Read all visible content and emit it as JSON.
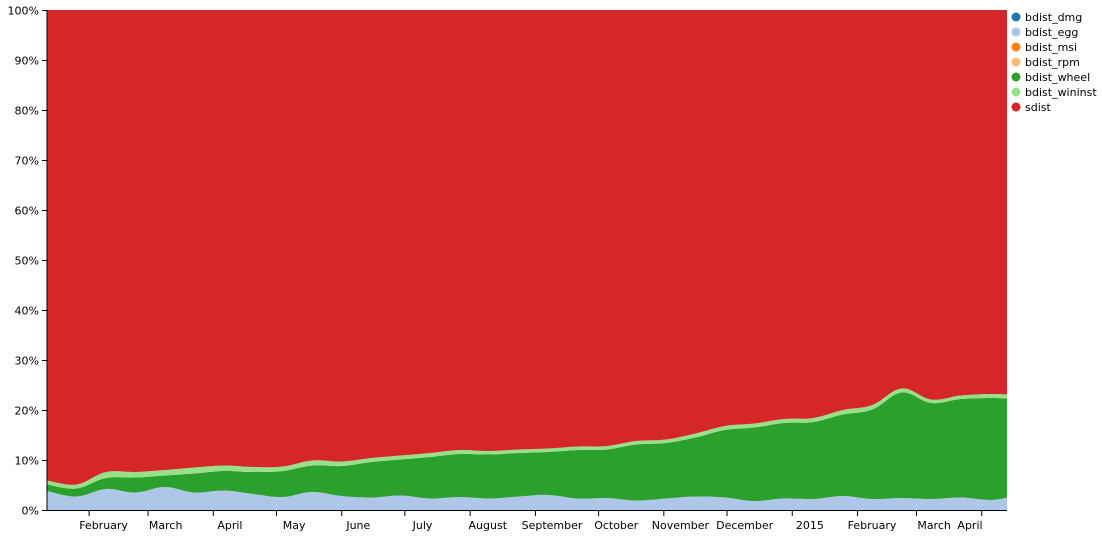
{
  "chart_data": {
    "type": "area",
    "stacked": true,
    "normalized": true,
    "y_axis": {
      "ylim": [
        0,
        100
      ],
      "tick_labels": [
        "0%",
        "10%",
        "20%",
        "30%",
        "40%",
        "50%",
        "60%",
        "70%",
        "80%",
        "90%",
        "100%"
      ]
    },
    "x_axis": {
      "tick_labels": [
        "February",
        "March",
        "April",
        "May",
        "June",
        "July",
        "August",
        "September",
        "October",
        "November",
        "December",
        "2015",
        "February",
        "March",
        "April"
      ],
      "range": [
        "2014-01-12",
        "2015-04-13"
      ]
    },
    "legend": {
      "placement": "right"
    },
    "x": [
      "2014-01-12",
      "2014-01-26",
      "2014-02-09",
      "2014-02-23",
      "2014-03-09",
      "2014-03-23",
      "2014-04-06",
      "2014-04-20",
      "2014-05-04",
      "2014-05-18",
      "2014-06-01",
      "2014-06-15",
      "2014-06-29",
      "2014-07-13",
      "2014-07-27",
      "2014-08-10",
      "2014-08-24",
      "2014-09-07",
      "2014-09-21",
      "2014-10-05",
      "2014-10-19",
      "2014-11-02",
      "2014-11-16",
      "2014-11-30",
      "2014-12-14",
      "2014-12-28",
      "2015-01-11",
      "2015-01-25",
      "2015-02-08",
      "2015-02-22",
      "2015-03-08",
      "2015-03-22",
      "2015-04-05",
      "2015-04-13"
    ],
    "series": [
      {
        "name": "bdist_dmg",
        "color": "#1f77b4",
        "values": [
          0,
          0,
          0,
          0,
          0,
          0,
          0,
          0,
          0,
          0,
          0,
          0,
          0,
          0,
          0,
          0,
          0,
          0,
          0,
          0,
          0,
          0,
          0,
          0,
          0,
          0,
          0,
          0,
          0,
          0,
          0,
          0,
          0,
          0
        ]
      },
      {
        "name": "bdist_egg",
        "color": "#aec7e8",
        "values": [
          3.8,
          2.7,
          4.2,
          3.5,
          4.6,
          3.5,
          3.9,
          3.2,
          2.6,
          3.6,
          2.8,
          2.5,
          2.9,
          2.3,
          2.6,
          2.3,
          2.7,
          3.0,
          2.3,
          2.4,
          1.9,
          2.3,
          2.7,
          2.5,
          1.8,
          2.3,
          2.2,
          2.8,
          2.2,
          2.4,
          2.2,
          2.5,
          2.0,
          2.5
        ]
      },
      {
        "name": "bdist_msi",
        "color": "#ff7f0e",
        "values": [
          0,
          0,
          0,
          0,
          0,
          0,
          0,
          0,
          0,
          0,
          0,
          0,
          0,
          0,
          0,
          0,
          0,
          0,
          0,
          0,
          0,
          0,
          0,
          0,
          0,
          0,
          0,
          0,
          0,
          0,
          0,
          0,
          0,
          0
        ]
      },
      {
        "name": "bdist_rpm",
        "color": "#ffbb78",
        "values": [
          0,
          0,
          0,
          0,
          0,
          0,
          0,
          0,
          0,
          0,
          0,
          0,
          0,
          0,
          0,
          0,
          0,
          0,
          0,
          0,
          0,
          0,
          0,
          0,
          0,
          0,
          0,
          0,
          0,
          0,
          0,
          0,
          0,
          0
        ]
      },
      {
        "name": "bdist_wheel",
        "color": "#2ca02c",
        "values": [
          1.3,
          1.6,
          2.2,
          3.0,
          2.3,
          3.8,
          3.9,
          4.4,
          5.2,
          5.3,
          6.0,
          7.1,
          7.2,
          8.3,
          8.6,
          8.8,
          8.7,
          8.6,
          9.7,
          9.7,
          11.2,
          11.1,
          11.8,
          13.5,
          14.7,
          15.1,
          15.4,
          16.3,
          17.9,
          21.1,
          19.2,
          19.7,
          20.4,
          19.8
        ]
      },
      {
        "name": "bdist_wininst",
        "color": "#98df8a",
        "values": [
          0.8,
          0.8,
          1.2,
          1.1,
          1.1,
          1.2,
          1.1,
          1.0,
          0.9,
          1.0,
          0.9,
          0.8,
          0.8,
          0.8,
          0.8,
          0.7,
          0.7,
          0.7,
          0.7,
          0.7,
          0.7,
          0.7,
          0.8,
          0.8,
          0.8,
          0.8,
          0.8,
          0.9,
          0.9,
          0.8,
          0.7,
          0.7,
          0.8,
          0.8
        ]
      },
      {
        "name": "sdist",
        "color": "#d62728",
        "values": [
          94.1,
          94.9,
          92.4,
          92.4,
          92.0,
          91.5,
          91.1,
          91.4,
          91.3,
          90.1,
          90.3,
          89.6,
          89.1,
          88.6,
          88.0,
          88.2,
          87.9,
          87.7,
          87.3,
          87.2,
          86.2,
          85.9,
          84.7,
          83.2,
          82.7,
          81.8,
          81.6,
          80.0,
          79.0,
          75.7,
          77.9,
          77.1,
          76.8,
          76.9
        ]
      }
    ]
  }
}
